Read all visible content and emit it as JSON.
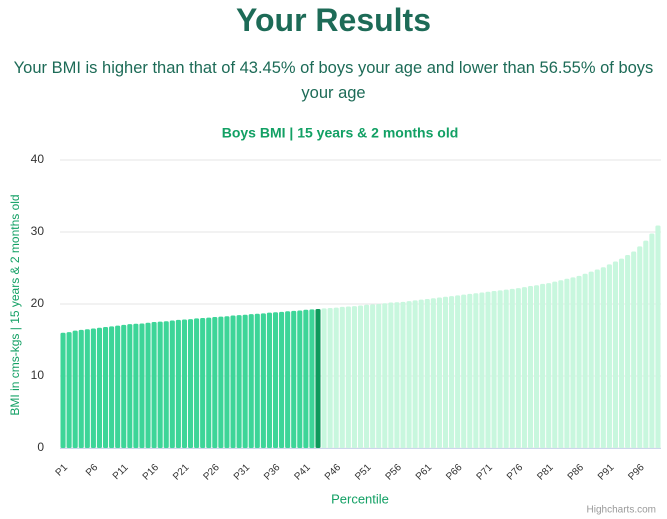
{
  "header": {
    "title": "Your Results",
    "subtitle": "Your BMI is higher than that of 43.45% of boys your age and lower than 56.55% of boys your age"
  },
  "chart_data": {
    "type": "bar",
    "title": "Boys BMI | 15 years & 2 months old",
    "x_label": "Percentile",
    "y_label": "BMI in cms-kgs | 15 years & 2 months old",
    "credits": "Highcharts.com",
    "categories": [
      "P1",
      null,
      null,
      null,
      null,
      "P6",
      null,
      null,
      null,
      null,
      "P11",
      null,
      null,
      null,
      null,
      "P16",
      null,
      null,
      null,
      null,
      "P21",
      null,
      null,
      null,
      null,
      "P26",
      null,
      null,
      null,
      null,
      "P31",
      null,
      null,
      null,
      null,
      "P36",
      null,
      null,
      null,
      null,
      "P41",
      null,
      null,
      null,
      null,
      "P46",
      null,
      null,
      null,
      null,
      "P51",
      null,
      null,
      null,
      null,
      "P56",
      null,
      null,
      null,
      null,
      "P61",
      null,
      null,
      null,
      null,
      "P66",
      null,
      null,
      null,
      null,
      "P71",
      null,
      null,
      null,
      null,
      "P76",
      null,
      null,
      null,
      null,
      "P81",
      null,
      null,
      null,
      null,
      "P86",
      null,
      null,
      null,
      null,
      "P91",
      null,
      null,
      null,
      null,
      "P96",
      null,
      null,
      null
    ],
    "values": [
      16.0,
      16.1,
      16.3,
      16.4,
      16.5,
      16.6,
      16.7,
      16.8,
      16.9,
      17.0,
      17.1,
      17.2,
      17.25,
      17.3,
      17.4,
      17.5,
      17.55,
      17.6,
      17.7,
      17.8,
      17.85,
      17.9,
      18.0,
      18.05,
      18.1,
      18.2,
      18.25,
      18.3,
      18.4,
      18.45,
      18.5,
      18.6,
      18.65,
      18.7,
      18.8,
      18.85,
      18.9,
      19.0,
      19.05,
      19.1,
      19.2,
      19.25,
      19.3,
      19.4,
      19.45,
      19.5,
      19.6,
      19.65,
      19.7,
      19.8,
      19.9,
      19.95,
      20.0,
      20.1,
      20.2,
      20.25,
      20.3,
      20.4,
      20.5,
      20.6,
      20.7,
      20.8,
      20.9,
      21.0,
      21.1,
      21.2,
      21.3,
      21.4,
      21.5,
      21.6,
      21.7,
      21.8,
      21.9,
      22.0,
      22.1,
      22.2,
      22.35,
      22.5,
      22.6,
      22.8,
      22.9,
      23.1,
      23.3,
      23.5,
      23.7,
      23.9,
      24.2,
      24.5,
      24.8,
      25.1,
      25.5,
      25.9,
      26.3,
      26.8,
      27.3,
      28.0,
      28.8,
      29.8,
      30.9
    ],
    "colors": {
      "below": "#3dd598",
      "selected": "#0e9a5c",
      "above": "#c8f7de"
    },
    "selected_index": 42,
    "ylim": [
      0,
      40
    ],
    "yticks": [
      0,
      10,
      20,
      30,
      40
    ],
    "grid": true
  }
}
